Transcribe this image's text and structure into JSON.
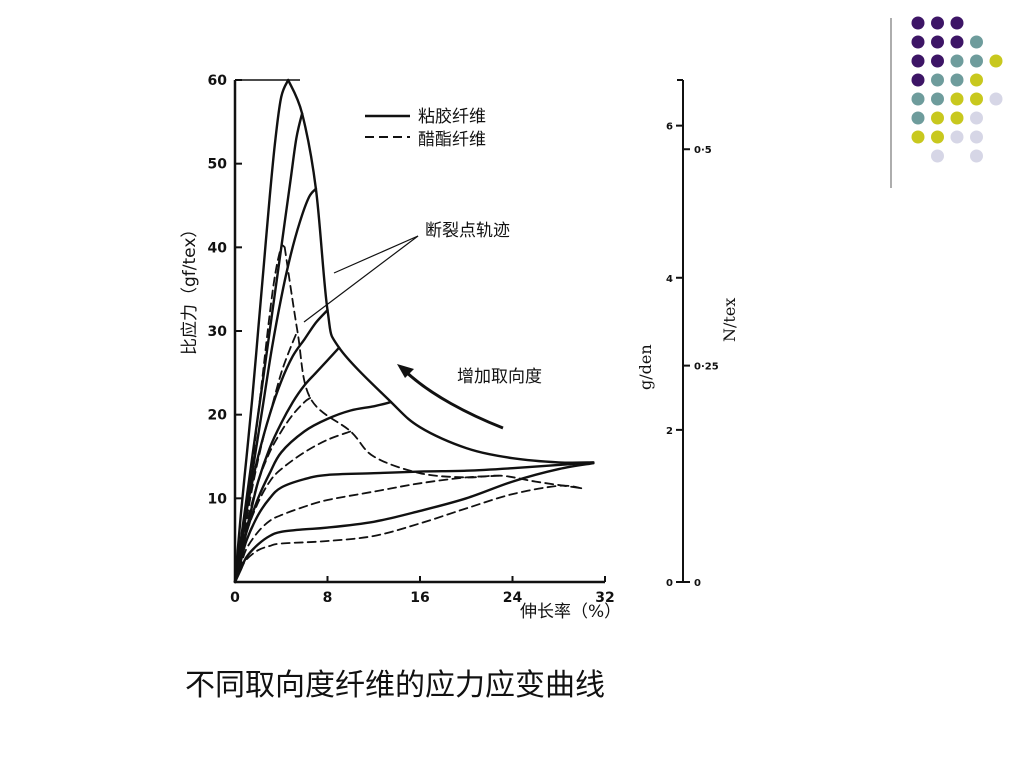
{
  "slide": {
    "caption": "不同取向度纤维的应力应变曲线",
    "decor_colors": [
      "#3d1566",
      "#6e9c9c",
      "#c8c81e",
      "#d6d6e6"
    ]
  },
  "chart_data": {
    "type": "line",
    "xlabel": "伸长率（%）",
    "ylabel": "比应力（gf/tex）",
    "xlim": [
      0,
      32
    ],
    "ylim": [
      0,
      60
    ],
    "x_ticks": [
      "0",
      "8",
      "16",
      "24",
      "32"
    ],
    "y_ticks": [
      "10",
      "20",
      "30",
      "40",
      "50",
      "60"
    ],
    "right_axis_gden": {
      "label": "g/den",
      "ticks": [
        "0",
        "2",
        "4",
        "6"
      ]
    },
    "right_axis_ntex": {
      "label": "N/tex",
      "ticks": [
        "0",
        "0·25",
        "0·5"
      ]
    },
    "legend": {
      "solid": "粘胶纤维",
      "dashed": "醋酯纤维",
      "position": "top-center"
    },
    "annotations": {
      "break_locus": "断裂点轨迹",
      "orientation_arrow": "增加取向度"
    },
    "series": [
      {
        "style": "solid",
        "points": [
          [
            0,
            0
          ],
          [
            0.5,
            8
          ],
          [
            1,
            15
          ],
          [
            1.5,
            22
          ],
          [
            2,
            30
          ],
          [
            2.5,
            38
          ],
          [
            3,
            46
          ],
          [
            3.5,
            53
          ],
          [
            4,
            58
          ],
          [
            4.6,
            60
          ]
        ]
      },
      {
        "style": "solid",
        "points": [
          [
            0,
            0
          ],
          [
            0.8,
            8
          ],
          [
            1.6,
            16
          ],
          [
            2.4,
            24
          ],
          [
            3.2,
            32
          ],
          [
            4,
            40
          ],
          [
            4.8,
            48
          ],
          [
            5.3,
            53
          ],
          [
            5.8,
            56
          ]
        ]
      },
      {
        "style": "solid",
        "points": [
          [
            0,
            0
          ],
          [
            0.8,
            7
          ],
          [
            1.6,
            14
          ],
          [
            2.4,
            21
          ],
          [
            3.2,
            28
          ],
          [
            4,
            34
          ],
          [
            4.8,
            39
          ],
          [
            5.6,
            43
          ],
          [
            6.4,
            46
          ],
          [
            7,
            47
          ]
        ]
      },
      {
        "style": "solid",
        "points": [
          [
            0,
            0
          ],
          [
            0.6,
            5
          ],
          [
            1.2,
            10
          ],
          [
            2,
            15
          ],
          [
            3,
            20
          ],
          [
            4,
            24
          ],
          [
            5,
            27
          ],
          [
            6,
            29
          ],
          [
            7,
            31
          ],
          [
            8,
            32.5
          ]
        ]
      },
      {
        "style": "solid",
        "points": [
          [
            0,
            0
          ],
          [
            0.6,
            4
          ],
          [
            1.3,
            8
          ],
          [
            2,
            12
          ],
          [
            3,
            16
          ],
          [
            4,
            19
          ],
          [
            5,
            21.5
          ],
          [
            6,
            23.5
          ],
          [
            7,
            25
          ],
          [
            8,
            26.5
          ],
          [
            9,
            28
          ]
        ]
      },
      {
        "style": "solid",
        "points": [
          [
            0,
            0
          ],
          [
            0.5,
            3
          ],
          [
            1,
            6
          ],
          [
            2,
            10
          ],
          [
            3,
            13
          ],
          [
            4,
            15.5
          ],
          [
            6,
            18
          ],
          [
            8,
            19.5
          ],
          [
            10,
            20.5
          ],
          [
            12,
            21
          ],
          [
            13.5,
            21.5
          ]
        ]
      },
      {
        "style": "solid",
        "points": [
          [
            0,
            0
          ],
          [
            0.5,
            2.5
          ],
          [
            1,
            5
          ],
          [
            2,
            8
          ],
          [
            3,
            10
          ],
          [
            4,
            11.3
          ],
          [
            6,
            12.3
          ],
          [
            8,
            12.8
          ],
          [
            12,
            13
          ],
          [
            16,
            13.2
          ],
          [
            20,
            13.3
          ],
          [
            24,
            13.6
          ],
          [
            28,
            14
          ],
          [
            31,
            14.3
          ]
        ]
      },
      {
        "style": "solid",
        "points": [
          [
            0,
            0
          ],
          [
            0.5,
            1.5
          ],
          [
            1,
            3
          ],
          [
            2,
            4.5
          ],
          [
            3,
            5.5
          ],
          [
            4,
            6
          ],
          [
            6,
            6.3
          ],
          [
            8,
            6.5
          ],
          [
            12,
            7.2
          ],
          [
            16,
            8.5
          ],
          [
            20,
            10
          ],
          [
            24,
            12
          ],
          [
            28,
            13.5
          ],
          [
            31,
            14.2
          ]
        ]
      },
      {
        "style": "dashed",
        "points": [
          [
            0,
            0
          ],
          [
            0.5,
            4
          ],
          [
            1,
            8
          ],
          [
            1.5,
            14
          ],
          [
            2,
            20
          ],
          [
            2.5,
            26
          ],
          [
            3,
            32
          ],
          [
            3.5,
            37
          ],
          [
            4,
            40
          ],
          [
            4.3,
            40
          ]
        ]
      },
      {
        "style": "dashed",
        "points": [
          [
            0,
            0
          ],
          [
            0.8,
            6
          ],
          [
            1.6,
            12
          ],
          [
            2.4,
            17
          ],
          [
            3.2,
            21
          ],
          [
            4,
            25
          ],
          [
            4.8,
            28
          ],
          [
            5.4,
            30
          ]
        ]
      },
      {
        "style": "dashed",
        "points": [
          [
            0,
            0
          ],
          [
            0.6,
            4
          ],
          [
            1.2,
            8
          ],
          [
            2,
            12
          ],
          [
            3,
            15.5
          ],
          [
            4,
            18
          ],
          [
            5,
            20
          ],
          [
            6,
            21.5
          ],
          [
            6.5,
            22
          ]
        ]
      },
      {
        "style": "dashed",
        "points": [
          [
            0,
            0
          ],
          [
            0.5,
            3
          ],
          [
            1,
            6
          ],
          [
            2,
            9.5
          ],
          [
            3,
            12
          ],
          [
            4,
            13.5
          ],
          [
            6,
            15.5
          ],
          [
            8,
            17
          ],
          [
            10,
            18
          ]
        ]
      },
      {
        "style": "dashed",
        "points": [
          [
            0,
            0
          ],
          [
            0.5,
            2
          ],
          [
            1,
            4
          ],
          [
            2,
            6
          ],
          [
            3,
            7.3
          ],
          [
            4,
            8
          ],
          [
            6,
            9
          ],
          [
            8,
            9.8
          ],
          [
            12,
            10.8
          ],
          [
            16,
            11.8
          ],
          [
            20,
            12.5
          ],
          [
            23,
            12.7
          ]
        ]
      },
      {
        "style": "dashed",
        "points": [
          [
            0,
            0
          ],
          [
            0.5,
            1.5
          ],
          [
            1,
            2.7
          ],
          [
            2,
            3.8
          ],
          [
            3,
            4.3
          ],
          [
            4,
            4.6
          ],
          [
            8,
            4.9
          ],
          [
            12,
            5.5
          ],
          [
            16,
            7
          ],
          [
            20,
            8.8
          ],
          [
            24,
            10.5
          ],
          [
            28,
            11.5
          ],
          [
            30,
            11.2
          ]
        ]
      },
      {
        "style": "solid",
        "role": "break-locus",
        "points": [
          [
            4.6,
            60
          ],
          [
            5.8,
            56
          ],
          [
            7,
            47
          ],
          [
            8,
            32.5
          ],
          [
            9,
            28
          ],
          [
            13.5,
            21.5
          ],
          [
            16,
            18.5
          ],
          [
            20,
            16
          ],
          [
            24,
            14.8
          ],
          [
            28,
            14.3
          ],
          [
            31,
            14.3
          ]
        ]
      },
      {
        "style": "dashed",
        "role": "break-locus",
        "points": [
          [
            4.3,
            40
          ],
          [
            5.4,
            30
          ],
          [
            6.5,
            22
          ],
          [
            10,
            18
          ],
          [
            12,
            15
          ],
          [
            16,
            13
          ],
          [
            20,
            12.5
          ],
          [
            23,
            12.7
          ],
          [
            26,
            12
          ],
          [
            30,
            11.2
          ]
        ]
      }
    ]
  }
}
